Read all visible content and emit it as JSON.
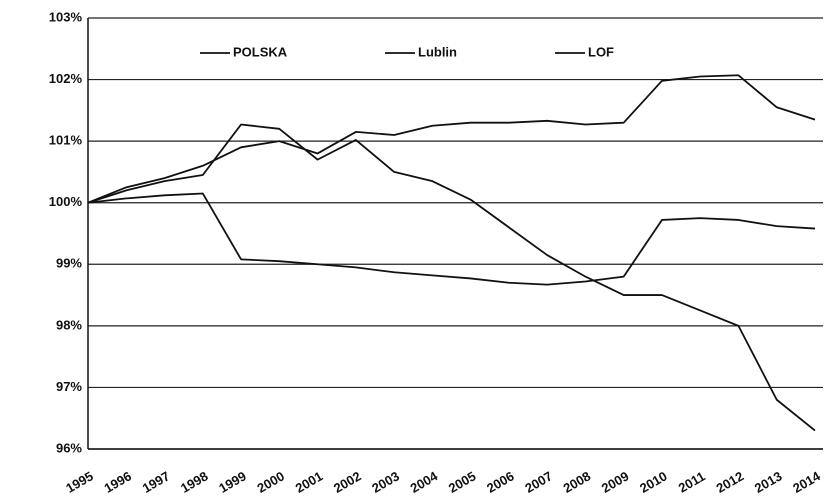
{
  "chart_data": {
    "type": "line",
    "categories": [
      "1995",
      "1996",
      "1997",
      "1998",
      "1999",
      "2000",
      "2001",
      "2002",
      "2003",
      "2004",
      "2005",
      "2006",
      "2007",
      "2008",
      "2009",
      "2010",
      "2011",
      "2012",
      "2013",
      "2014"
    ],
    "series": [
      {
        "name": "POLSKA",
        "color": "#111111",
        "values": [
          100,
          100.25,
          100.4,
          100.6,
          100.9,
          101.0,
          100.8,
          101.15,
          101.1,
          101.25,
          101.3,
          101.3,
          101.33,
          101.27,
          101.3,
          101.98,
          102.05,
          102.07,
          101.55,
          101.35
        ]
      },
      {
        "name": "Lublin",
        "color": "#111111",
        "values": [
          100,
          100.2,
          100.35,
          100.45,
          101.27,
          101.2,
          100.7,
          101.02,
          100.5,
          100.35,
          100.05,
          99.6,
          99.15,
          98.8,
          98.5,
          98.5,
          98.25,
          98.0,
          96.8,
          96.3
        ]
      },
      {
        "name": "LOF",
        "color": "#111111",
        "values": [
          100,
          100.07,
          100.12,
          100.15,
          99.08,
          99.05,
          99.0,
          98.95,
          98.87,
          98.82,
          98.77,
          98.7,
          98.67,
          98.72,
          98.8,
          99.72,
          99.75,
          99.72,
          99.62,
          99.58
        ]
      }
    ],
    "ylim": [
      96,
      103
    ],
    "yticks": [
      {
        "value": 96,
        "label": "96%"
      },
      {
        "value": 97,
        "label": "97%"
      },
      {
        "value": 98,
        "label": "98%"
      },
      {
        "value": 99,
        "label": "99%"
      },
      {
        "value": 100,
        "label": "100%"
      },
      {
        "value": 101,
        "label": "101%"
      },
      {
        "value": 102,
        "label": "102%"
      },
      {
        "value": 103,
        "label": "103%"
      }
    ],
    "grid": true,
    "legend": "top"
  }
}
